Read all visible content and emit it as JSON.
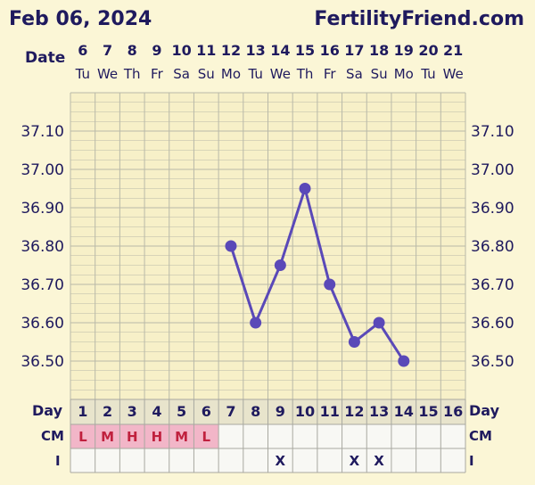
{
  "header": {
    "date": "Feb 06, 2024",
    "site": "FertilityFriend.com"
  },
  "labels": {
    "date": "Date",
    "day": "Day",
    "cm": "CM",
    "intercourse": "I"
  },
  "colors": {
    "background": "#fbf6d6",
    "text": "#1f1a5e",
    "line": "#5a49b8",
    "grid": "#b9b9a8",
    "cm_fill": "#f2b6c8"
  },
  "chart_data": {
    "type": "line",
    "title": "",
    "xlabel": "Day",
    "ylabel": "",
    "ylim": [
      36.4,
      37.2
    ],
    "yticks": [
      37.1,
      37.0,
      36.9,
      36.8,
      36.7,
      36.6,
      36.5
    ],
    "ytick_labels": [
      "37.10",
      "37.00",
      "36.90",
      "36.80",
      "36.70",
      "36.60",
      "36.50"
    ],
    "dates": [
      "6",
      "7",
      "8",
      "9",
      "10",
      "11",
      "12",
      "13",
      "14",
      "15",
      "16",
      "17",
      "18",
      "19",
      "20",
      "21"
    ],
    "weekdays": [
      "Tu",
      "We",
      "Th",
      "Fr",
      "Sa",
      "Su",
      "Mo",
      "Tu",
      "We",
      "Th",
      "Fr",
      "Sa",
      "Su",
      "Mo",
      "Tu",
      "We"
    ],
    "days": [
      "1",
      "2",
      "3",
      "4",
      "5",
      "6",
      "7",
      "8",
      "9",
      "10",
      "11",
      "12",
      "13",
      "14",
      "15",
      "16"
    ],
    "series": [
      {
        "points": [
          {
            "day": 7,
            "value": 36.8
          },
          {
            "day": 8,
            "value": 36.6
          },
          {
            "day": 9,
            "value": 36.75
          },
          {
            "day": 10,
            "value": 36.95
          },
          {
            "day": 11,
            "value": 36.7
          },
          {
            "day": 12,
            "value": 36.55
          },
          {
            "day": 13,
            "value": 36.6
          },
          {
            "day": 14,
            "value": 36.5
          }
        ]
      }
    ],
    "cm": [
      "L",
      "M",
      "H",
      "H",
      "M",
      "L",
      "",
      "",
      "",
      "",
      "",
      "",
      "",
      "",
      "",
      ""
    ],
    "intercourse": [
      "",
      "",
      "",
      "",
      "",
      "",
      "",
      "",
      "X",
      "",
      "",
      "X",
      "X",
      "",
      "",
      ""
    ]
  }
}
